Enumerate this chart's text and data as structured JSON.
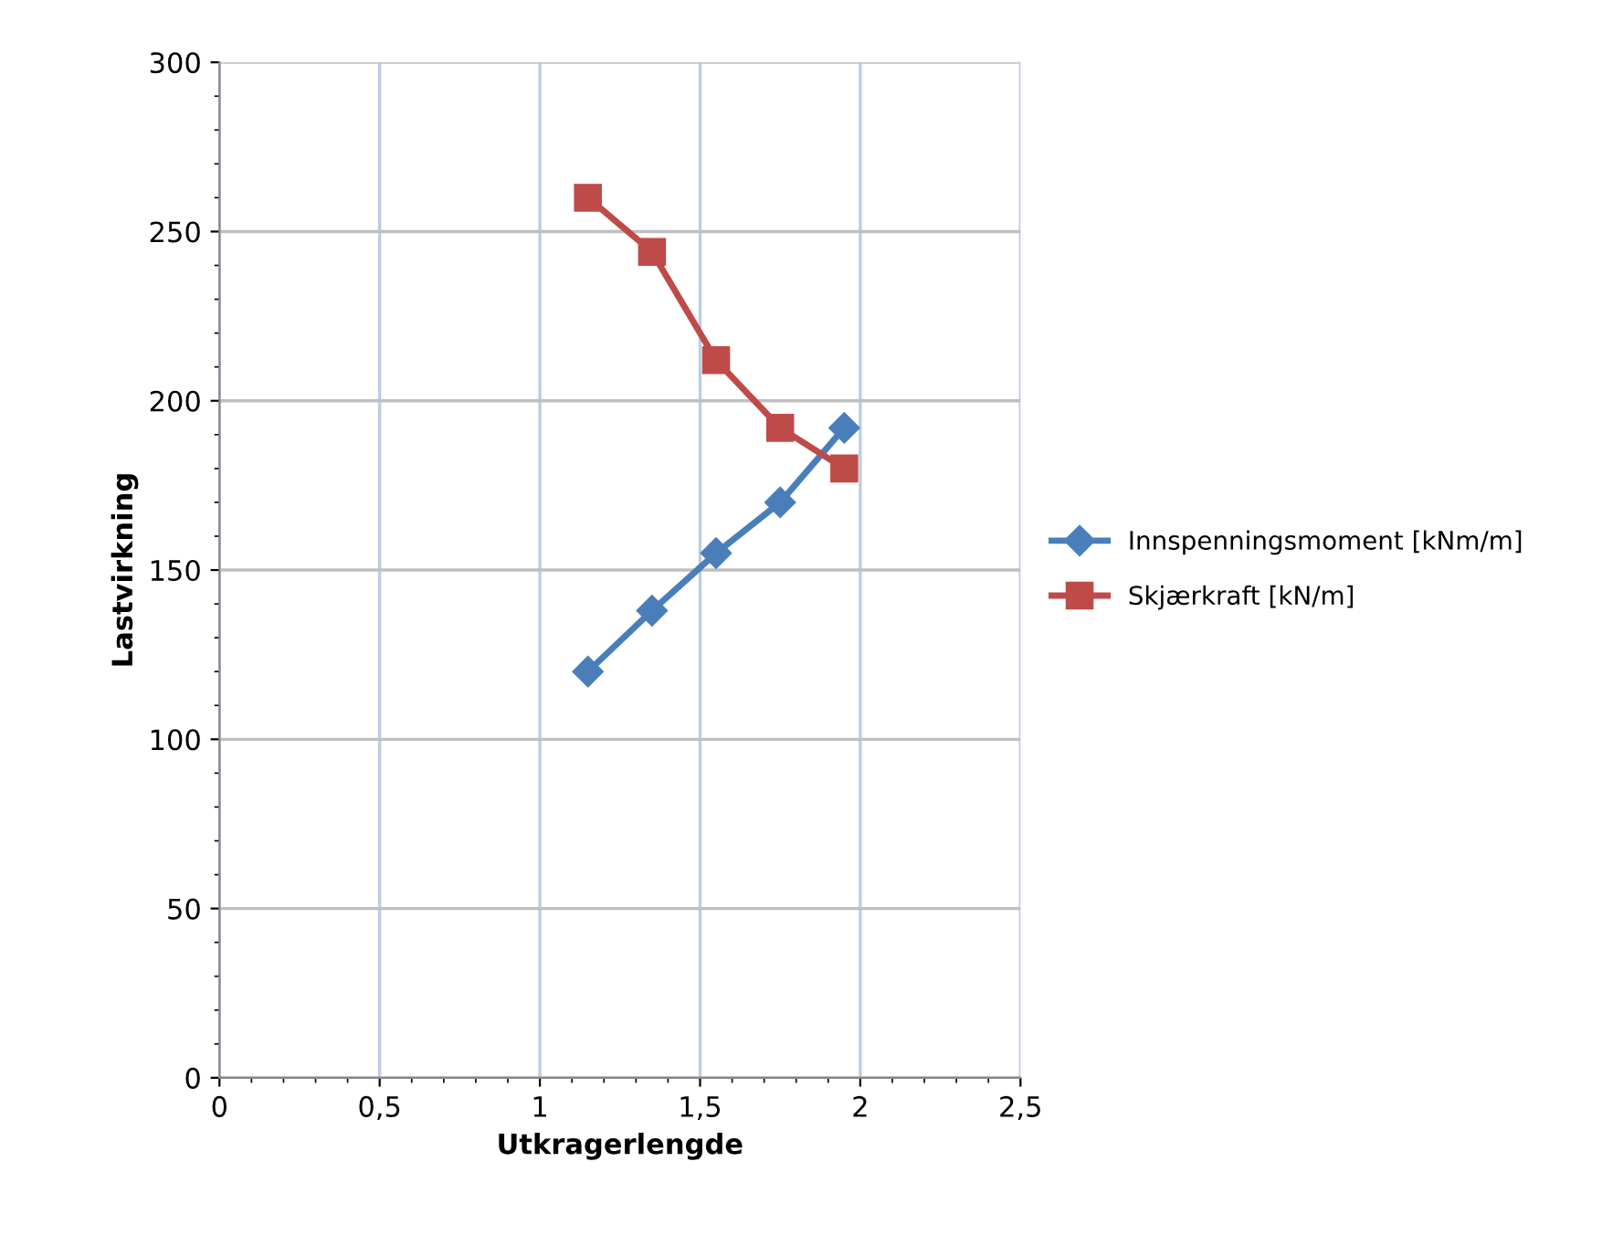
{
  "chart_data": {
    "type": "line",
    "xlabel": "Utkragerlengde",
    "ylabel": "Lastvirkning",
    "xlim": [
      0,
      2.5
    ],
    "ylim": [
      0,
      300
    ],
    "xticks": [
      {
        "value": 0,
        "label": "0"
      },
      {
        "value": 0.5,
        "label": "0,5"
      },
      {
        "value": 1,
        "label": "1"
      },
      {
        "value": 1.5,
        "label": "1,5"
      },
      {
        "value": 2,
        "label": "2"
      },
      {
        "value": 2.5,
        "label": "2,5"
      }
    ],
    "yticks": [
      0,
      50,
      100,
      150,
      200,
      250,
      300
    ],
    "grid": true,
    "legend": "right",
    "line_style": "solid",
    "series": [
      {
        "name": "Innspenningsmoment [kNm/m]",
        "color": "#4a7ebb",
        "marker": "diamond",
        "x": [
          1.15,
          1.35,
          1.55,
          1.75,
          1.95
        ],
        "values": [
          120,
          138,
          155,
          170,
          192
        ]
      },
      {
        "name": "Skjærkraft [kN/m]",
        "color": "#be4b48",
        "marker": "square",
        "x": [
          1.15,
          1.35,
          1.55,
          1.75,
          1.95
        ],
        "values": [
          260,
          244,
          212,
          192,
          180
        ]
      }
    ]
  }
}
